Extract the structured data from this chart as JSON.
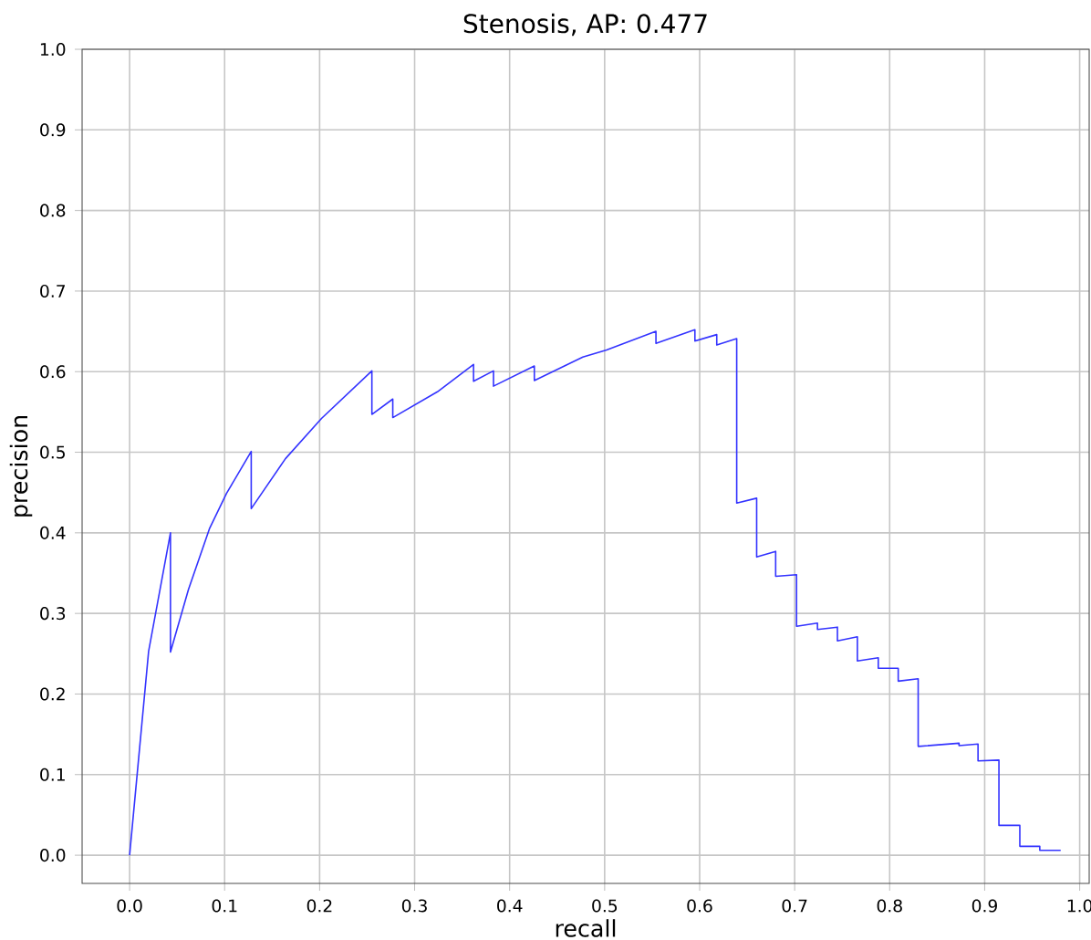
{
  "chart_data": {
    "type": "line",
    "title": "Stenosis, AP: 0.477",
    "xlabel": "recall",
    "ylabel": "precision",
    "x": [
      0,
      0.02,
      0.043,
      0.043,
      0.062,
      0.084,
      0.102,
      0.128,
      0.128,
      0.164,
      0.202,
      0.255,
      0.255,
      0.277,
      0.277,
      0.324,
      0.362,
      0.362,
      0.383,
      0.383,
      0.426,
      0.426,
      0.477,
      0.502,
      0.554,
      0.554,
      0.595,
      0.595,
      0.618,
      0.618,
      0.639,
      0.639,
      0.66,
      0.66,
      0.68,
      0.68,
      0.702,
      0.702,
      0.724,
      0.724,
      0.745,
      0.745,
      0.766,
      0.766,
      0.788,
      0.788,
      0.809,
      0.809,
      0.83,
      0.83,
      0.873,
      0.873,
      0.893,
      0.893,
      0.915,
      0.915,
      0.937,
      0.937,
      0.958,
      0.958,
      0.98
    ],
    "series": [
      {
        "color": "#3333ff",
        "values": [
          0,
          0.253,
          0.4,
          0.252,
          0.33,
          0.405,
          0.449,
          0.501,
          0.43,
          0.492,
          0.542,
          0.601,
          0.547,
          0.566,
          0.543,
          0.575,
          0.609,
          0.588,
          0.601,
          0.582,
          0.607,
          0.589,
          0.618,
          0.627,
          0.65,
          0.635,
          0.652,
          0.638,
          0.646,
          0.633,
          0.641,
          0.437,
          0.443,
          0.37,
          0.377,
          0.346,
          0.348,
          0.284,
          0.288,
          0.28,
          0.283,
          0.266,
          0.271,
          0.241,
          0.245,
          0.232,
          0.232,
          0.216,
          0.219,
          0.135,
          0.139,
          0.136,
          0.138,
          0.117,
          0.118,
          0.037,
          0.037,
          0.011,
          0.011,
          0.006,
          0.006
        ]
      }
    ],
    "xlim": [
      -0.05,
      1.01
    ],
    "ylim": [
      -0.035,
      1.0
    ],
    "xticks": [
      {
        "value": 0,
        "label": "0.0"
      },
      0.1,
      0.2,
      0.3,
      0.4,
      0.5,
      0.6,
      0.7,
      0.8,
      0.9,
      {
        "value": 1,
        "label": "1.0"
      }
    ],
    "yticks": [
      {
        "value": 0,
        "label": "0.0"
      },
      0.1,
      0.2,
      0.3,
      0.4,
      0.5,
      0.6,
      0.7,
      0.8,
      0.9,
      {
        "value": 1,
        "label": "1.0"
      }
    ],
    "grid": true,
    "line_style": "solid",
    "marker": "none"
  }
}
